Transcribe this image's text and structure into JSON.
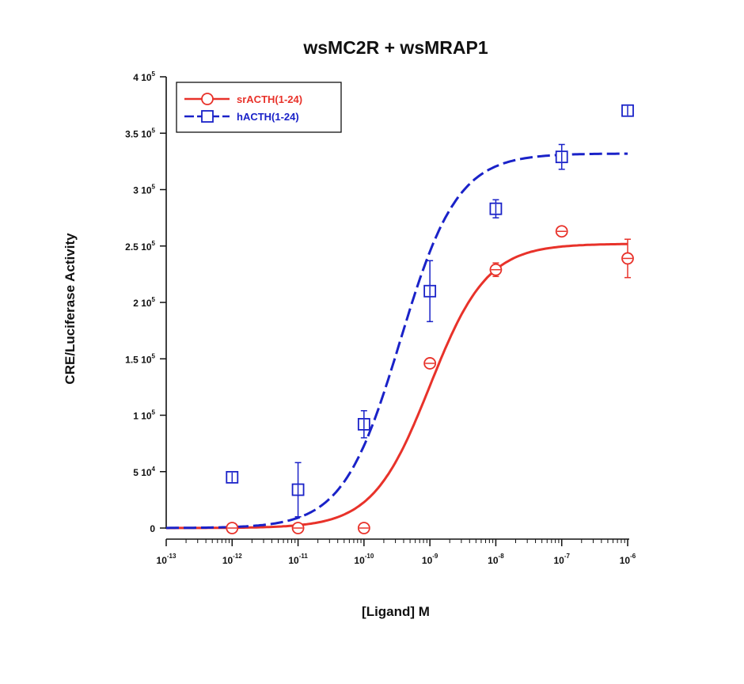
{
  "chart_data": {
    "type": "scatter",
    "title": "wsMC2R + wsMRAP1",
    "xlabel": "[Ligand] M",
    "ylabel": "CRE/Luciferase Activity",
    "x_scale": "log",
    "xlim": [
      1e-13,
      1e-06
    ],
    "ylim": [
      0,
      400000
    ],
    "x_ticks": [
      {
        "value": 1e-13,
        "base": "10",
        "exp": "-13"
      },
      {
        "value": 1e-12,
        "base": "10",
        "exp": "-12"
      },
      {
        "value": 1e-11,
        "base": "10",
        "exp": "-11"
      },
      {
        "value": 1e-10,
        "base": "10",
        "exp": "-10"
      },
      {
        "value": 1e-09,
        "base": "10",
        "exp": "-9"
      },
      {
        "value": 1e-08,
        "base": "10",
        "exp": "-8"
      },
      {
        "value": 1e-07,
        "base": "10",
        "exp": "-7"
      },
      {
        "value": 1e-06,
        "base": "10",
        "exp": "-6"
      }
    ],
    "y_ticks": [
      {
        "value": 0,
        "mant": "0",
        "exp": ""
      },
      {
        "value": 50000,
        "mant": "5 10",
        "exp": "4"
      },
      {
        "value": 100000,
        "mant": "1 10",
        "exp": "5"
      },
      {
        "value": 150000,
        "mant": "1.5 10",
        "exp": "5"
      },
      {
        "value": 200000,
        "mant": "2 10",
        "exp": "5"
      },
      {
        "value": 250000,
        "mant": "2.5 10",
        "exp": "5"
      },
      {
        "value": 300000,
        "mant": "3 10",
        "exp": "5"
      },
      {
        "value": 350000,
        "mant": "3.5 10",
        "exp": "5"
      },
      {
        "value": 400000,
        "mant": "4 10",
        "exp": "5"
      }
    ],
    "legend_position": "top-left",
    "series": [
      {
        "name": "srACTH(1-24)",
        "color": "#e8322a",
        "marker": "circle",
        "line_style": "solid",
        "x": [
          1e-12,
          1e-11,
          1e-10,
          1e-09,
          1e-08,
          1e-07,
          1e-06
        ],
        "y": [
          0,
          0,
          0,
          146000,
          229000,
          263000,
          239000
        ],
        "err": [
          0,
          0,
          0,
          0,
          6000,
          0,
          17000
        ],
        "fit": {
          "bottom": 0,
          "top": 252000,
          "logEC50": -9.0,
          "hill": 1.0
        }
      },
      {
        "name": "hACTH(1-24)",
        "color": "#1a22c8",
        "marker": "square",
        "line_style": "dashed",
        "x": [
          1e-12,
          1e-11,
          1e-10,
          1e-09,
          1e-08,
          1e-07,
          1e-06
        ],
        "y": [
          45000,
          34000,
          92000,
          210000,
          283000,
          329000,
          370000
        ],
        "err": [
          0,
          24000,
          12000,
          27000,
          8000,
          11000,
          0
        ],
        "fit": {
          "bottom": 0,
          "top": 332000,
          "logEC50": -9.45,
          "hill": 1.0
        }
      }
    ]
  }
}
